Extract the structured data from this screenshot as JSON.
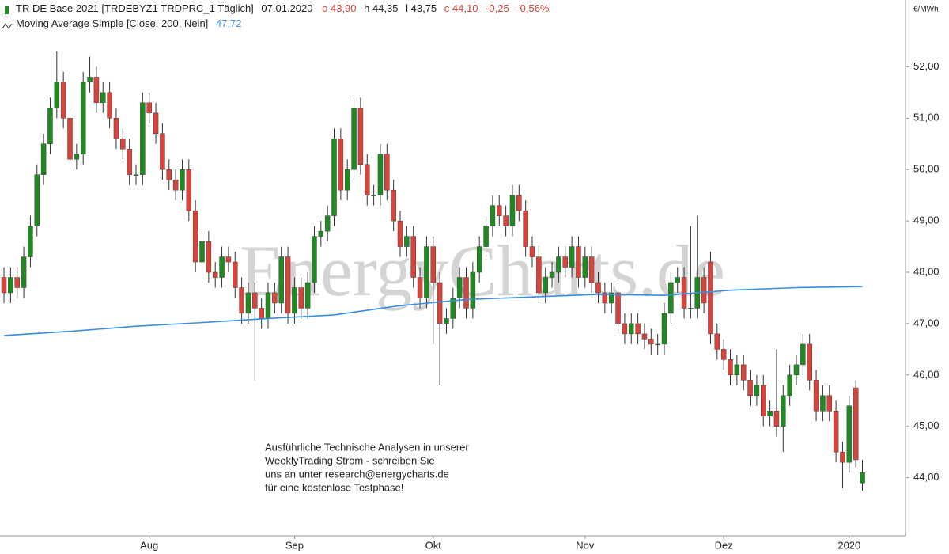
{
  "chart_data": {
    "type": "candlestick",
    "title": "TR DE Base 2021 [TRDEBYZ1 TRDPRC_1 Täglich]",
    "date": "07.01.2020",
    "ohlc_labels": [
      "o 43,90",
      "h 44,35",
      "l 43,75",
      "c 44,10"
    ],
    "change": "-0,25",
    "change_pct": "-0,56%",
    "y_unit": "€/MWh",
    "up_color": "#1f8a1f",
    "down_color": "#d8433c",
    "watermark": "EnergyCharts.de",
    "annotation": [
      "Ausführliche Technische Analysen in unserer",
      "WeeklyTrading Strom - schreiben Sie",
      "uns an unter research@energycharts.de",
      "für eine kostenlose Testphase!"
    ],
    "ylim": [
      42.87,
      53.3
    ],
    "yticks": [
      {
        "value": 44,
        "label": "44,00"
      },
      {
        "value": 45,
        "label": "45,00"
      },
      {
        "value": 46,
        "label": "46,00"
      },
      {
        "value": 47,
        "label": "47,00"
      },
      {
        "value": 48,
        "label": "48,00"
      },
      {
        "value": 49,
        "label": "49,00"
      },
      {
        "value": 50,
        "label": "50,00"
      },
      {
        "value": 51,
        "label": "51,00"
      },
      {
        "value": 52,
        "label": "52,00"
      }
    ],
    "categories": [
      null,
      null,
      null,
      null,
      null,
      null,
      null,
      null,
      null,
      null,
      null,
      null,
      null,
      null,
      null,
      null,
      null,
      null,
      null,
      null,
      null,
      null,
      "Aug",
      null,
      null,
      null,
      null,
      null,
      null,
      null,
      null,
      null,
      null,
      null,
      null,
      null,
      null,
      null,
      null,
      null,
      null,
      null,
      null,
      null,
      "Sep",
      null,
      null,
      null,
      null,
      null,
      null,
      null,
      null,
      null,
      null,
      null,
      null,
      null,
      null,
      null,
      null,
      null,
      null,
      null,
      null,
      "Okt",
      null,
      null,
      null,
      null,
      null,
      null,
      null,
      null,
      null,
      null,
      null,
      null,
      null,
      null,
      null,
      null,
      null,
      null,
      null,
      null,
      null,
      null,
      "Nov",
      null,
      null,
      null,
      null,
      null,
      null,
      null,
      null,
      null,
      null,
      null,
      null,
      null,
      null,
      null,
      null,
      null,
      null,
      null,
      null,
      "Dez",
      null,
      null,
      null,
      null,
      null,
      null,
      null,
      null,
      null,
      null,
      null,
      null,
      null,
      null,
      null,
      null,
      null,
      null,
      "2020",
      null,
      null
    ],
    "candles": [
      [
        47.9,
        48.1,
        47.4,
        47.6
      ],
      [
        47.6,
        48.1,
        47.4,
        47.9
      ],
      [
        47.9,
        48.1,
        47.5,
        47.7
      ],
      [
        47.7,
        48.5,
        47.5,
        48.3
      ],
      [
        48.3,
        49.1,
        48.1,
        48.9
      ],
      [
        48.9,
        50.1,
        48.7,
        49.9
      ],
      [
        49.9,
        50.7,
        49.7,
        50.5
      ],
      [
        50.5,
        51.4,
        50.3,
        51.2
      ],
      [
        51.2,
        52.3,
        51.0,
        51.7
      ],
      [
        51.7,
        51.9,
        50.8,
        51.0
      ],
      [
        51.0,
        51.2,
        50.0,
        50.2
      ],
      [
        50.2,
        50.5,
        50.0,
        50.3
      ],
      [
        50.3,
        51.9,
        50.1,
        51.7
      ],
      [
        51.7,
        52.2,
        51.5,
        51.8
      ],
      [
        51.8,
        52.0,
        51.1,
        51.3
      ],
      [
        51.3,
        51.7,
        51.1,
        51.5
      ],
      [
        51.5,
        51.7,
        50.8,
        51.0
      ],
      [
        51.0,
        51.2,
        50.4,
        50.6
      ],
      [
        50.6,
        50.8,
        50.2,
        50.4
      ],
      [
        50.4,
        50.6,
        49.7,
        49.9
      ],
      [
        49.9,
        50.1,
        49.7,
        49.9
      ],
      [
        49.9,
        51.5,
        49.7,
        51.3
      ],
      [
        51.3,
        51.5,
        50.9,
        51.1
      ],
      [
        51.1,
        51.3,
        50.5,
        50.7
      ],
      [
        50.7,
        50.9,
        49.8,
        50.0
      ],
      [
        50.0,
        50.2,
        49.6,
        49.8
      ],
      [
        49.8,
        50.0,
        49.4,
        49.6
      ],
      [
        49.6,
        50.2,
        49.4,
        50.0
      ],
      [
        50.0,
        50.2,
        49.0,
        49.2
      ],
      [
        49.2,
        49.4,
        48.0,
        48.2
      ],
      [
        48.2,
        48.8,
        48.0,
        48.6
      ],
      [
        48.6,
        48.8,
        47.8,
        48.0
      ],
      [
        48.0,
        48.2,
        47.7,
        47.9
      ],
      [
        47.9,
        48.5,
        47.7,
        48.3
      ],
      [
        48.3,
        48.5,
        48.0,
        48.2
      ],
      [
        48.2,
        48.4,
        47.5,
        47.7
      ],
      [
        47.7,
        47.9,
        47.0,
        47.2
      ],
      [
        47.2,
        47.8,
        47.0,
        47.6
      ],
      [
        47.6,
        47.8,
        45.9,
        47.3
      ],
      [
        47.3,
        47.5,
        46.9,
        47.1
      ],
      [
        47.1,
        47.8,
        46.9,
        47.6
      ],
      [
        47.6,
        47.8,
        47.2,
        47.4
      ],
      [
        47.4,
        48.5,
        47.2,
        48.3
      ],
      [
        48.3,
        48.5,
        47.0,
        47.2
      ],
      [
        47.2,
        47.9,
        47.0,
        47.7
      ],
      [
        47.7,
        47.9,
        47.1,
        47.3
      ],
      [
        47.3,
        48.0,
        47.1,
        47.8
      ],
      [
        47.8,
        48.9,
        47.6,
        48.7
      ],
      [
        48.7,
        49.0,
        48.5,
        48.8
      ],
      [
        48.8,
        49.3,
        48.6,
        49.1
      ],
      [
        49.1,
        50.8,
        48.9,
        50.6
      ],
      [
        50.6,
        50.8,
        49.4,
        49.6
      ],
      [
        49.6,
        50.2,
        49.4,
        50.0
      ],
      [
        50.0,
        51.4,
        49.8,
        51.2
      ],
      [
        51.2,
        51.4,
        49.9,
        50.1
      ],
      [
        50.1,
        50.3,
        49.3,
        49.5
      ],
      [
        49.5,
        49.7,
        49.3,
        49.5
      ],
      [
        49.5,
        50.5,
        49.3,
        50.3
      ],
      [
        50.3,
        50.5,
        49.4,
        49.6
      ],
      [
        49.6,
        49.8,
        48.8,
        49.0
      ],
      [
        49.0,
        49.2,
        48.3,
        48.5
      ],
      [
        48.5,
        48.9,
        48.3,
        48.7
      ],
      [
        48.7,
        48.9,
        47.7,
        47.9
      ],
      [
        47.9,
        48.1,
        47.3,
        47.5
      ],
      [
        47.5,
        48.7,
        47.3,
        48.5
      ],
      [
        48.5,
        48.7,
        46.6,
        47.8
      ],
      [
        47.8,
        48.0,
        45.8,
        47.0
      ],
      [
        47.0,
        47.3,
        46.8,
        47.1
      ],
      [
        47.1,
        47.7,
        46.9,
        47.5
      ],
      [
        47.5,
        48.1,
        47.3,
        47.9
      ],
      [
        47.9,
        48.1,
        47.1,
        47.3
      ],
      [
        47.3,
        48.2,
        47.1,
        48.0
      ],
      [
        48.0,
        48.7,
        47.8,
        48.5
      ],
      [
        48.5,
        49.1,
        48.3,
        48.9
      ],
      [
        48.9,
        49.5,
        48.7,
        49.3
      ],
      [
        49.3,
        49.5,
        48.9,
        49.1
      ],
      [
        49.1,
        49.3,
        48.7,
        48.9
      ],
      [
        48.9,
        49.7,
        48.7,
        49.5
      ],
      [
        49.5,
        49.7,
        49.0,
        49.2
      ],
      [
        49.2,
        49.4,
        48.3,
        48.5
      ],
      [
        48.5,
        48.7,
        48.1,
        48.3
      ],
      [
        48.3,
        48.5,
        47.4,
        47.6
      ],
      [
        47.6,
        48.1,
        47.4,
        47.9
      ],
      [
        47.9,
        48.2,
        47.7,
        48.0
      ],
      [
        48.0,
        48.5,
        47.8,
        48.3
      ],
      [
        48.3,
        48.5,
        47.9,
        48.1
      ],
      [
        48.1,
        48.7,
        47.9,
        48.5
      ],
      [
        48.5,
        48.7,
        47.7,
        47.9
      ],
      [
        47.9,
        48.5,
        47.7,
        48.3
      ],
      [
        48.3,
        48.5,
        47.6,
        47.8
      ],
      [
        47.8,
        48.0,
        47.4,
        47.6
      ],
      [
        47.6,
        47.8,
        47.2,
        47.4
      ],
      [
        47.4,
        47.8,
        47.2,
        47.6
      ],
      [
        47.6,
        47.8,
        46.8,
        47.0
      ],
      [
        47.0,
        47.2,
        46.6,
        46.8
      ],
      [
        46.8,
        47.2,
        46.6,
        47.0
      ],
      [
        47.0,
        47.2,
        46.6,
        46.8
      ],
      [
        46.8,
        47.0,
        46.5,
        46.7
      ],
      [
        46.7,
        46.9,
        46.4,
        46.6
      ],
      [
        46.6,
        46.8,
        46.4,
        46.6
      ],
      [
        46.6,
        47.4,
        46.4,
        47.2
      ],
      [
        47.2,
        48.0,
        47.0,
        47.8
      ],
      [
        47.8,
        48.1,
        47.6,
        47.9
      ],
      [
        47.9,
        48.1,
        47.1,
        47.3
      ],
      [
        47.3,
        48.9,
        47.1,
        47.3
      ],
      [
        47.3,
        49.1,
        47.1,
        47.9
      ],
      [
        47.9,
        48.1,
        47.2,
        47.4
      ],
      [
        48.2,
        48.4,
        46.6,
        46.8
      ],
      [
        46.8,
        47.0,
        46.3,
        46.5
      ],
      [
        46.5,
        46.7,
        46.1,
        46.3
      ],
      [
        46.3,
        46.5,
        45.8,
        46.0
      ],
      [
        46.0,
        46.4,
        45.8,
        46.2
      ],
      [
        46.2,
        46.4,
        45.7,
        45.9
      ],
      [
        45.9,
        46.1,
        45.4,
        45.6
      ],
      [
        45.6,
        46.0,
        45.4,
        45.8
      ],
      [
        45.8,
        46.0,
        45.0,
        45.2
      ],
      [
        45.2,
        45.5,
        45.0,
        45.3
      ],
      [
        45.3,
        46.5,
        44.8,
        45.0
      ],
      [
        45.0,
        45.8,
        44.5,
        45.6
      ],
      [
        45.6,
        46.2,
        45.4,
        46.0
      ],
      [
        46.0,
        46.4,
        45.8,
        46.2
      ],
      [
        46.2,
        46.8,
        46.0,
        46.6
      ],
      [
        46.6,
        46.8,
        45.7,
        45.9
      ],
      [
        45.9,
        46.1,
        45.1,
        45.3
      ],
      [
        45.3,
        45.8,
        45.1,
        45.6
      ],
      [
        45.6,
        45.8,
        45.1,
        45.3
      ],
      [
        45.3,
        45.5,
        44.3,
        44.5
      ],
      [
        44.5,
        44.7,
        43.8,
        44.3
      ],
      [
        44.3,
        45.6,
        44.1,
        45.4
      ],
      [
        45.75,
        45.9,
        44.2,
        44.35
      ],
      [
        43.9,
        44.35,
        43.75,
        44.1
      ]
    ],
    "indicator": {
      "name": "Moving Average Simple [Close, 200, Nein]",
      "value_label": "47,72",
      "color": "#3a8ee0",
      "x": [
        0,
        10,
        20,
        30,
        40,
        50,
        60,
        70,
        80,
        90,
        100,
        110,
        120,
        130
      ],
      "values": [
        46.77,
        46.85,
        46.95,
        47.02,
        47.1,
        47.17,
        47.35,
        47.47,
        47.52,
        47.57,
        47.55,
        47.65,
        47.7,
        47.72
      ]
    }
  }
}
